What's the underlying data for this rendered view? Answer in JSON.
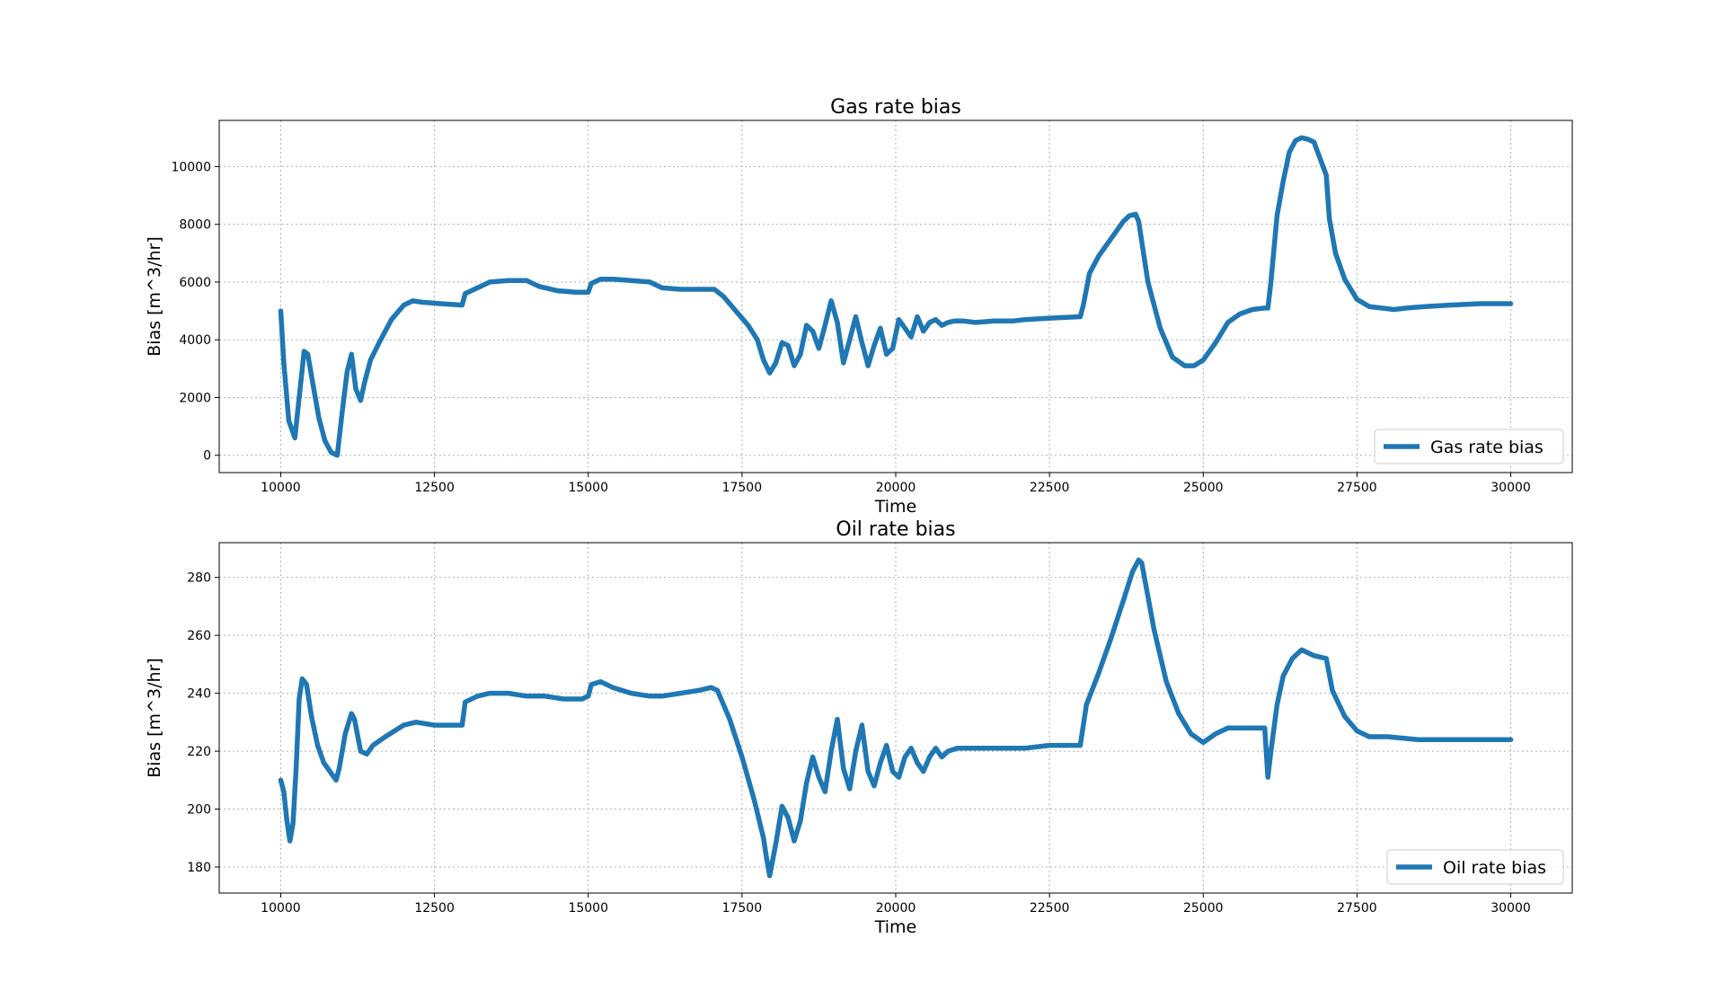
{
  "chart_data": [
    {
      "type": "line",
      "title": "Gas rate bias",
      "xlabel": "Time",
      "ylabel": "Bias [m^3/hr]",
      "xlim": [
        9000,
        31000
      ],
      "ylim": [
        -600,
        11600
      ],
      "xticks": [
        10000,
        12500,
        15000,
        17500,
        20000,
        22500,
        25000,
        27500,
        30000
      ],
      "yticks": [
        0,
        2000,
        4000,
        6000,
        8000,
        10000
      ],
      "grid": true,
      "legend_position": "lower-right",
      "color": "#1f77b4",
      "series": [
        {
          "name": "Gas rate bias",
          "x": [
            10000,
            10050,
            10130,
            10230,
            10300,
            10380,
            10440,
            10520,
            10620,
            10720,
            10820,
            10920,
            11000,
            11080,
            11150,
            11220,
            11300,
            11360,
            11460,
            11600,
            11800,
            12000,
            12150,
            12300,
            12600,
            12950,
            13000,
            13200,
            13400,
            13700,
            14000,
            14200,
            14500,
            14800,
            15000,
            15050,
            15200,
            15400,
            15700,
            16000,
            16200,
            16500,
            16800,
            17050,
            17200,
            17400,
            17600,
            17750,
            17850,
            17950,
            18050,
            18150,
            18250,
            18350,
            18450,
            18550,
            18650,
            18750,
            18850,
            18950,
            19050,
            19150,
            19250,
            19350,
            19450,
            19550,
            19650,
            19750,
            19850,
            19950,
            20050,
            20150,
            20250,
            20350,
            20450,
            20550,
            20650,
            20750,
            20850,
            20950,
            21100,
            21300,
            21600,
            21900,
            22100,
            22500,
            23000,
            23050,
            23150,
            23300,
            23500,
            23700,
            23800,
            23900,
            23950,
            24100,
            24300,
            24500,
            24700,
            24850,
            25000,
            25200,
            25400,
            25600,
            25800,
            26000,
            26050,
            26100,
            26200,
            26300,
            26400,
            26500,
            26600,
            26700,
            26800,
            27000,
            27050,
            27150,
            27300,
            27500,
            27700,
            27900,
            28100,
            28300,
            28600,
            29000,
            29500,
            30000
          ],
          "y": [
            5000,
            3200,
            1200,
            600,
            2000,
            3600,
            3500,
            2500,
            1300,
            500,
            100,
            0,
            1500,
            2900,
            3500,
            2300,
            1900,
            2500,
            3300,
            3900,
            4700,
            5200,
            5350,
            5300,
            5250,
            5200,
            5600,
            5800,
            6000,
            6050,
            6050,
            5850,
            5700,
            5650,
            5650,
            5950,
            6100,
            6100,
            6050,
            6000,
            5800,
            5750,
            5750,
            5750,
            5500,
            5000,
            4500,
            4000,
            3300,
            2850,
            3200,
            3900,
            3800,
            3100,
            3500,
            4500,
            4300,
            3700,
            4500,
            5350,
            4600,
            3200,
            4000,
            4800,
            3900,
            3100,
            3800,
            4400,
            3500,
            3700,
            4700,
            4400,
            4100,
            4800,
            4300,
            4600,
            4700,
            4500,
            4600,
            4650,
            4650,
            4600,
            4650,
            4650,
            4700,
            4750,
            4800,
            5200,
            6300,
            6900,
            7500,
            8100,
            8300,
            8350,
            8100,
            6000,
            4400,
            3400,
            3100,
            3100,
            3300,
            3900,
            4600,
            4900,
            5050,
            5100,
            5100,
            6000,
            8300,
            9500,
            10500,
            10900,
            11000,
            10950,
            10850,
            9700,
            8200,
            7000,
            6100,
            5400,
            5150,
            5100,
            5050,
            5100,
            5150,
            5200,
            5250,
            5250
          ]
        }
      ]
    },
    {
      "type": "line",
      "title": "Oil rate bias",
      "xlabel": "Time",
      "ylabel": "Bias [m^3/hr]",
      "xlim": [
        9000,
        31000
      ],
      "ylim": [
        171,
        292
      ],
      "xticks": [
        10000,
        12500,
        15000,
        17500,
        20000,
        22500,
        25000,
        27500,
        30000
      ],
      "yticks": [
        180,
        200,
        220,
        240,
        260,
        280
      ],
      "grid": true,
      "legend_position": "lower-right",
      "color": "#1f77b4",
      "series": [
        {
          "name": "Oil rate bias",
          "x": [
            10000,
            10050,
            10100,
            10150,
            10200,
            10250,
            10300,
            10350,
            10420,
            10500,
            10600,
            10700,
            10800,
            10900,
            10950,
            11050,
            11150,
            11200,
            11300,
            11400,
            11500,
            11700,
            12000,
            12200,
            12500,
            12950,
            13000,
            13200,
            13400,
            13700,
            14000,
            14300,
            14600,
            14900,
            15000,
            15050,
            15200,
            15400,
            15700,
            16000,
            16200,
            16500,
            16800,
            17000,
            17100,
            17300,
            17500,
            17700,
            17850,
            17900,
            17950,
            18050,
            18150,
            18250,
            18350,
            18450,
            18550,
            18650,
            18750,
            18850,
            18950,
            19050,
            19150,
            19250,
            19350,
            19450,
            19550,
            19650,
            19750,
            19850,
            19950,
            20050,
            20150,
            20250,
            20350,
            20450,
            20550,
            20650,
            20750,
            20850,
            21000,
            21300,
            21600,
            21900,
            22100,
            22500,
            23000,
            23100,
            23300,
            23500,
            23700,
            23850,
            23950,
            24000,
            24200,
            24400,
            24600,
            24800,
            25000,
            25200,
            25400,
            25600,
            25800,
            26000,
            26050,
            26100,
            26200,
            26300,
            26450,
            26600,
            26700,
            26800,
            27000,
            27100,
            27300,
            27500,
            27700,
            28000,
            28500,
            29000,
            29500,
            30000
          ],
          "y": [
            210,
            206,
            196,
            189,
            195,
            214,
            238,
            245,
            243,
            232,
            222,
            216,
            213,
            210,
            214,
            226,
            233,
            231,
            220,
            219,
            222,
            225,
            229,
            230,
            229,
            229,
            237,
            239,
            240,
            240,
            239,
            239,
            238,
            238,
            239,
            243,
            244,
            242,
            240,
            239,
            239,
            240,
            241,
            242,
            241,
            231,
            218,
            203,
            190,
            183,
            177,
            188,
            201,
            197,
            189,
            196,
            209,
            218,
            211,
            206,
            220,
            231,
            214,
            207,
            220,
            229,
            213,
            208,
            216,
            222,
            213,
            211,
            218,
            221,
            216,
            213,
            218,
            221,
            218,
            220,
            221,
            221,
            221,
            221,
            221,
            222,
            222,
            236,
            247,
            259,
            272,
            282,
            286,
            285,
            262,
            244,
            233,
            226,
            223,
            226,
            228,
            228,
            228,
            228,
            211,
            220,
            236,
            246,
            252,
            255,
            254,
            253,
            252,
            241,
            232,
            227,
            225,
            225,
            224,
            224,
            224,
            224
          ]
        }
      ]
    }
  ]
}
